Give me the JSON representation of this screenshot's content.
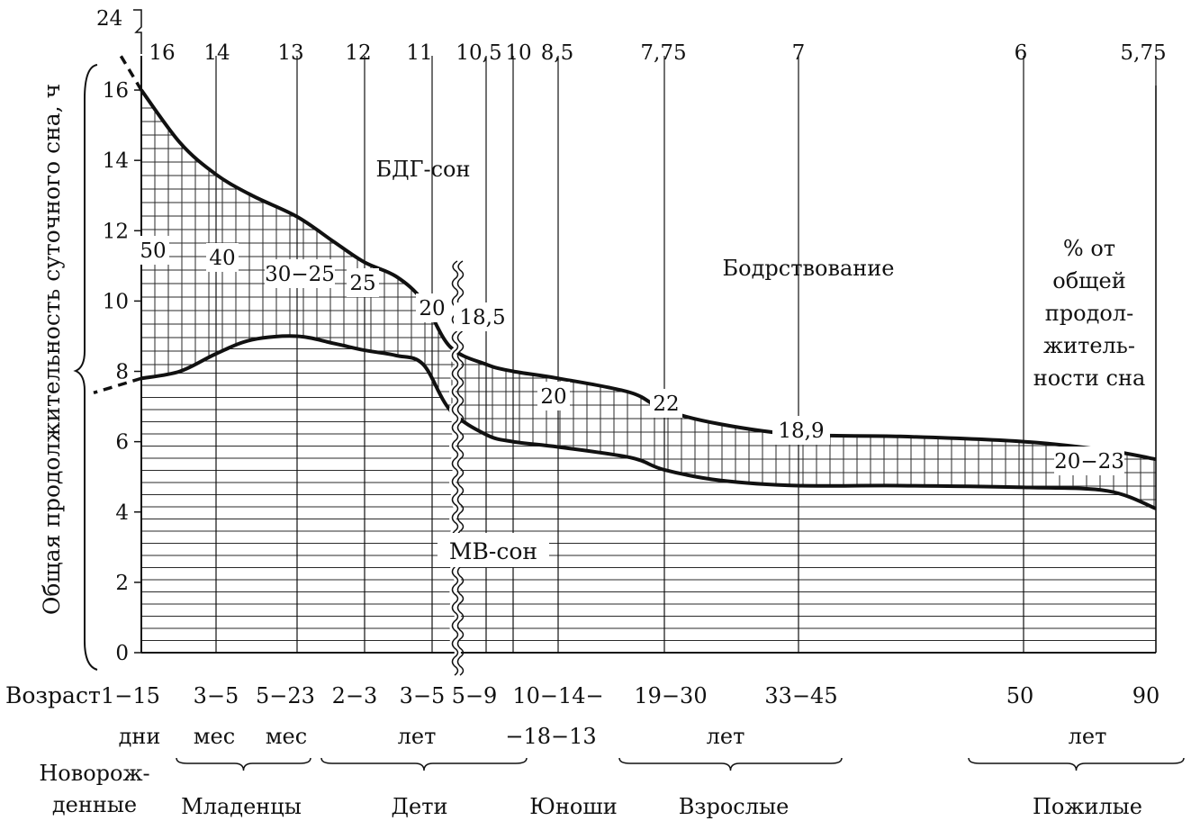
{
  "chart_data": {
    "type": "area",
    "ylabel": "Общая продолжительность суточного сна, ч",
    "y_ticks": [
      "0",
      "2",
      "4",
      "6",
      "8",
      "10",
      "12",
      "14",
      "16"
    ],
    "y_top_tick": "24",
    "ylim": [
      0,
      16.5
    ],
    "x_row_label": "Возраст",
    "x_categories": [
      "1−15",
      "3−5",
      "5−23",
      "2−3",
      "3−5",
      "5−9",
      "10−14−",
      "19−30",
      "33−45",
      "50",
      "90"
    ],
    "x_units": [
      "дни",
      "мес",
      "мес",
      "лет",
      "−18−13",
      "лет",
      "лет"
    ],
    "groups": [
      "Новорож-\nденные",
      "Младенцы",
      "Дети",
      "Юноши",
      "Взрослые",
      "Пожилые"
    ],
    "top_hours": [
      "16",
      "14",
      "13",
      "12",
      "11",
      "10,5",
      "10",
      "8,5",
      "7,75",
      "7",
      "6",
      "5,75"
    ],
    "total_sleep_line": [
      16,
      14.5,
      13.6,
      13.0,
      12.4,
      11.7,
      11.1,
      10.7,
      10.0,
      8.7,
      8.2,
      8.0,
      7.8,
      7.4,
      6.9,
      6.5,
      6.2,
      6.15,
      6.0,
      5.75,
      5.5
    ],
    "nrem_sleep_line": [
      7.8,
      8.0,
      8.5,
      8.9,
      9.0,
      8.8,
      8.6,
      8.45,
      8.2,
      6.9,
      6.2,
      6.0,
      5.85,
      5.55,
      5.2,
      4.9,
      4.75,
      4.75,
      4.7,
      4.6,
      4.1
    ],
    "rem_percent_labels": [
      "50",
      "40",
      "30−25",
      "25",
      "20",
      "18,5",
      "20",
      "22",
      "18,9",
      "20−23"
    ],
    "area_labels": {
      "rem": "БДГ-сон",
      "nrem": "МВ-сон",
      "wake": "Бодрствование",
      "percent_note": "% от\nобщей\nпродол-\nжитель-\nности сна"
    },
    "grid": true,
    "colors": {
      "ink": "#111111",
      "grid": "#2a2a2a",
      "background": "#ffffff"
    }
  }
}
